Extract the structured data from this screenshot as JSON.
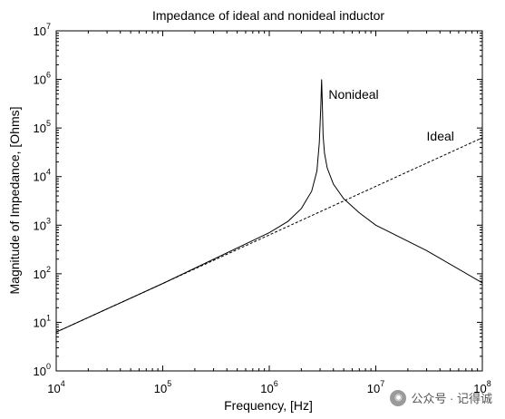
{
  "watermark": {
    "text": "公众号 · 记得诚",
    "icon": "wechat-icon"
  },
  "chart_data": {
    "type": "line",
    "title": "Impedance of ideal and nonideal inductor",
    "xlabel": "Frequency, [Hz]",
    "ylabel": "Magnitude of Impedance, [Ohms]",
    "xscale": "log",
    "yscale": "log",
    "xlim": [
      10000,
      100000000
    ],
    "ylim": [
      1,
      10000000
    ],
    "grid": false,
    "x_ticks": [
      {
        "base": "10",
        "exp": "4",
        "value": 10000
      },
      {
        "base": "10",
        "exp": "5",
        "value": 100000
      },
      {
        "base": "10",
        "exp": "6",
        "value": 1000000
      },
      {
        "base": "10",
        "exp": "7",
        "value": 10000000
      },
      {
        "base": "10",
        "exp": "8",
        "value": 100000000
      }
    ],
    "y_ticks": [
      {
        "base": "10",
        "exp": "0",
        "value": 1
      },
      {
        "base": "10",
        "exp": "1",
        "value": 10
      },
      {
        "base": "10",
        "exp": "2",
        "value": 100
      },
      {
        "base": "10",
        "exp": "3",
        "value": 1000
      },
      {
        "base": "10",
        "exp": "4",
        "value": 10000
      },
      {
        "base": "10",
        "exp": "5",
        "value": 100000
      },
      {
        "base": "10",
        "exp": "6",
        "value": 1000000
      },
      {
        "base": "10",
        "exp": "7",
        "value": 10000000
      }
    ],
    "series": [
      {
        "name": "Ideal",
        "style": "dashed",
        "x": [
          10000,
          100000000
        ],
        "y": [
          6.3,
          63000
        ]
      },
      {
        "name": "Nonideal",
        "style": "solid",
        "x": [
          10000,
          100000,
          1000000,
          1500000,
          2000000,
          2500000,
          2800000,
          2950000,
          3050000,
          3100000,
          3150000,
          3200000,
          3300000,
          3500000,
          4000000,
          5000000,
          7000000,
          10000000,
          30000000,
          100000000
        ],
        "y": [
          6.3,
          63,
          700,
          1200,
          2200,
          5000,
          13000,
          50000,
          300000,
          1000000,
          300000,
          70000,
          30000,
          15000,
          7000,
          3500,
          1800,
          1000,
          300,
          65
        ]
      }
    ],
    "annotations": [
      {
        "text": "Nonideal",
        "x": 3600000,
        "y": 400000
      },
      {
        "text": "Ideal",
        "x": 30000000,
        "y": 55000
      }
    ]
  }
}
